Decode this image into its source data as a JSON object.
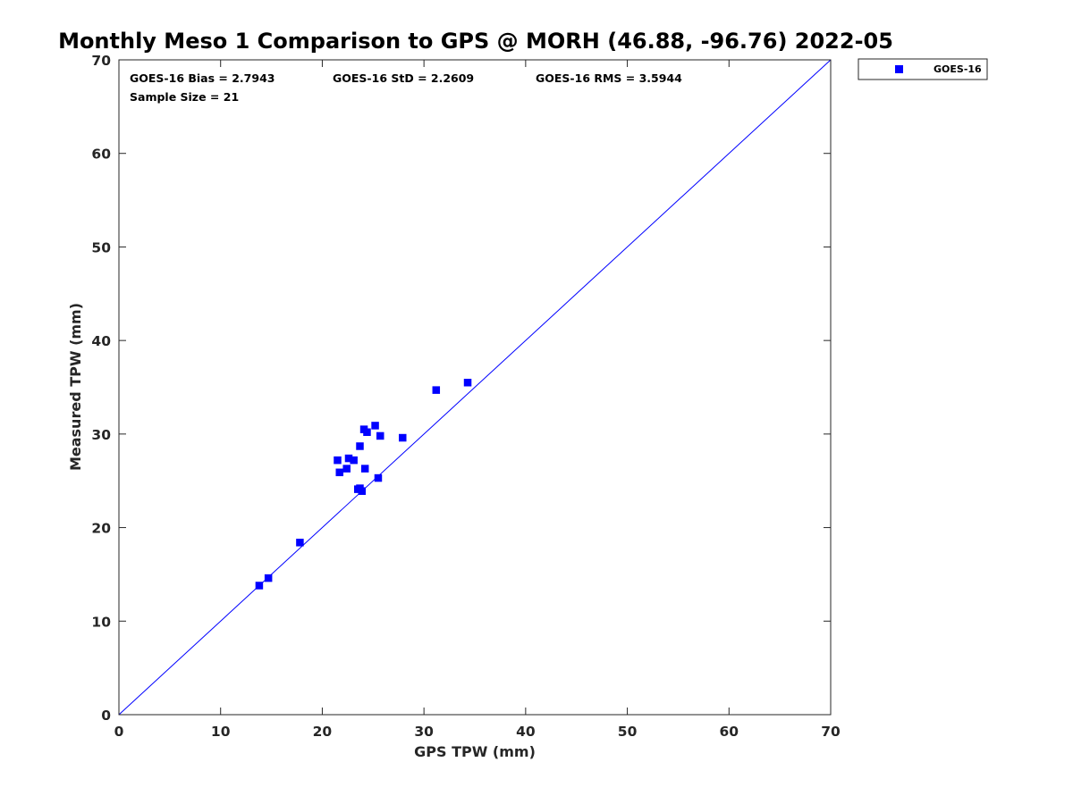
{
  "chart_data": {
    "type": "scatter",
    "title": "Monthly Meso 1 Comparison to GPS @ MORH (46.88, -96.76) 2022-05",
    "xlabel": "GPS TPW (mm)",
    "ylabel": "Measured TPW (mm)",
    "xlim": [
      0,
      70
    ],
    "ylim": [
      0,
      70
    ],
    "xticks": [
      "0",
      "10",
      "20",
      "30",
      "40",
      "50",
      "60",
      "70"
    ],
    "yticks": [
      "0",
      "10",
      "20",
      "30",
      "40",
      "50",
      "60",
      "70"
    ],
    "grid": false,
    "legend_position": "outside-top-right",
    "reference_line": {
      "from": [
        0,
        0
      ],
      "to": [
        70,
        70
      ],
      "color": "#0000ff"
    },
    "stats": {
      "bias": "GOES-16 Bias = 2.7943",
      "std": "GOES-16 StD = 2.2609",
      "rms": "GOES-16 RMS = 3.5944",
      "sample_size": "Sample Size = 21"
    },
    "series": [
      {
        "name": "GOES-16",
        "color": "#0000ff",
        "marker": "square",
        "x": [
          13.8,
          14.7,
          17.8,
          21.5,
          21.7,
          22.4,
          22.6,
          23.1,
          23.5,
          23.7,
          23.9,
          23.7,
          24.1,
          24.2,
          24.4,
          25.2,
          25.7,
          25.5,
          27.9,
          31.2,
          34.3
        ],
        "y": [
          13.8,
          14.6,
          18.4,
          27.2,
          25.9,
          26.3,
          27.4,
          27.2,
          24.1,
          24.2,
          23.9,
          28.7,
          30.5,
          26.3,
          30.2,
          30.9,
          29.8,
          25.3,
          29.6,
          34.7,
          35.5
        ]
      }
    ]
  }
}
